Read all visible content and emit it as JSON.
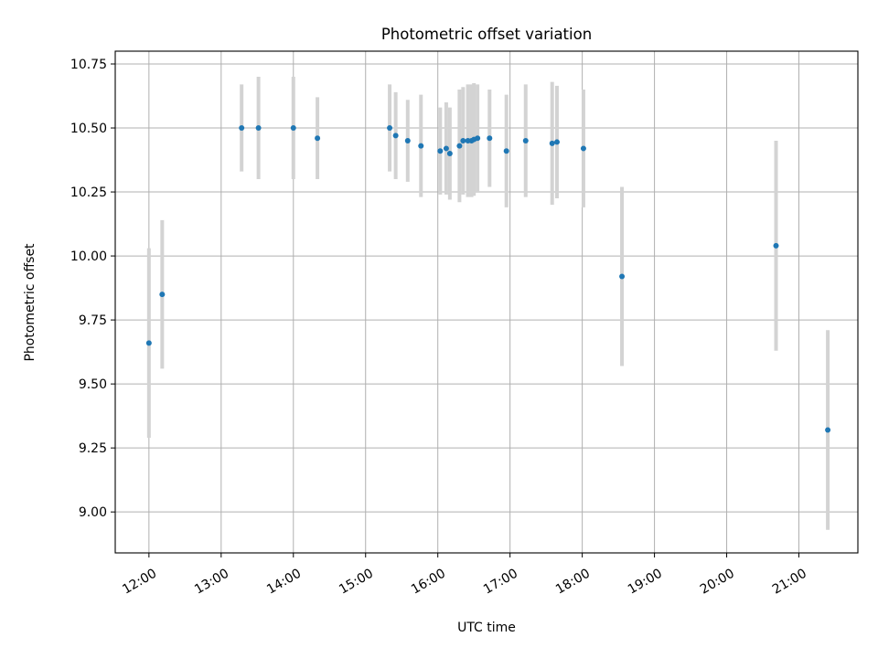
{
  "chart_data": {
    "type": "scatter",
    "title": "Photometric offset variation",
    "xlabel": "UTC time",
    "ylabel": "Photometric offset",
    "x_tick_labels": [
      "12:00",
      "13:00",
      "14:00",
      "15:00",
      "16:00",
      "17:00",
      "18:00",
      "19:00",
      "20:00",
      "21:00"
    ],
    "y_tick_labels": [
      "9.00",
      "9.25",
      "9.50",
      "9.75",
      "10.00",
      "10.25",
      "10.50",
      "10.75"
    ],
    "y_ticks": [
      9.0,
      9.25,
      9.5,
      9.75,
      10.0,
      10.25,
      10.5,
      10.75
    ],
    "xlim": [
      "11:32",
      "21:49"
    ],
    "ylim": [
      8.84,
      10.8
    ],
    "grid": true,
    "colors": {
      "point": "#1f77b4",
      "error_bar": "#d3d3d3"
    },
    "series": [
      {
        "x": [
          "12:00",
          "12:11",
          "13:17",
          "13:31",
          "14:00",
          "14:20",
          "15:20",
          "15:25",
          "15:35",
          "15:46",
          "16:02",
          "16:07",
          "16:10",
          "16:18",
          "16:21",
          "16:25",
          "16:28",
          "16:30",
          "16:33",
          "16:43",
          "16:57",
          "17:13",
          "17:35",
          "17:39",
          "18:01",
          "18:33",
          "20:41",
          "21:24"
        ],
        "y": [
          9.66,
          9.85,
          10.5,
          10.5,
          10.5,
          10.46,
          10.5,
          10.47,
          10.45,
          10.43,
          10.41,
          10.42,
          10.4,
          10.43,
          10.45,
          10.45,
          10.45,
          10.455,
          10.46,
          10.46,
          10.41,
          10.45,
          10.44,
          10.445,
          10.42,
          9.92,
          10.04,
          9.32
        ],
        "yerr": [
          0.37,
          0.29,
          0.17,
          0.2,
          0.2,
          0.16,
          0.17,
          0.17,
          0.16,
          0.2,
          0.17,
          0.18,
          0.18,
          0.22,
          0.21,
          0.22,
          0.22,
          0.22,
          0.21,
          0.19,
          0.22,
          0.22,
          0.24,
          0.22,
          0.23,
          0.35,
          0.41,
          0.39
        ]
      }
    ]
  }
}
